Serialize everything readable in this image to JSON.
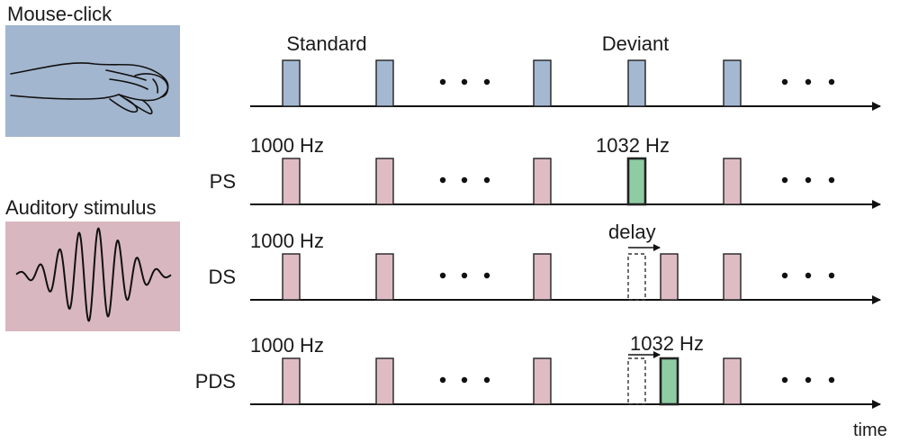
{
  "legend": {
    "mouse": {
      "caption": "Mouse-click",
      "panel_color": "#a3b6cf",
      "icon": "hand-on-mouse-icon"
    },
    "audio": {
      "caption": "Auditory stimulus",
      "panel_color": "#d9b7c0",
      "icon": "sound-waveform-icon"
    }
  },
  "colors": {
    "click_pulse": "#a4b8d2",
    "standard_pulse": "#dfbcc4",
    "deviant_pulse": "#8fcca4",
    "stroke": "#222222"
  },
  "rows": [
    {
      "id": "click",
      "label": "",
      "top_labels": [
        {
          "text": "Standard",
          "anchor": 1
        },
        {
          "text": "Deviant",
          "anchor": 3
        }
      ],
      "pulses": [
        {
          "kind": "click"
        },
        {
          "kind": "click"
        },
        {
          "kind": "click"
        },
        {
          "kind": "click"
        },
        {
          "kind": "click"
        }
      ]
    },
    {
      "id": "ps",
      "label": "PS",
      "top_labels": [
        {
          "text": "1000 Hz",
          "anchor": 0
        },
        {
          "text": "1032 Hz",
          "anchor": 3
        }
      ],
      "pulses": [
        {
          "kind": "standard"
        },
        {
          "kind": "standard"
        },
        {
          "kind": "standard"
        },
        {
          "kind": "deviant"
        },
        {
          "kind": "standard"
        }
      ]
    },
    {
      "id": "ds",
      "label": "DS",
      "top_labels": [
        {
          "text": "1000 Hz",
          "anchor": 0
        },
        {
          "text": "delay",
          "anchor": 3
        }
      ],
      "pulses": [
        {
          "kind": "standard"
        },
        {
          "kind": "standard"
        },
        {
          "kind": "standard"
        },
        {
          "kind": "standard",
          "delayed": true
        },
        {
          "kind": "standard"
        }
      ]
    },
    {
      "id": "pds",
      "label": "PDS",
      "top_labels": [
        {
          "text": "1000 Hz",
          "anchor": 0
        },
        {
          "text": "1032 Hz",
          "anchor": 3
        }
      ],
      "pulses": [
        {
          "kind": "standard"
        },
        {
          "kind": "standard"
        },
        {
          "kind": "standard"
        },
        {
          "kind": "deviant",
          "delayed": true
        },
        {
          "kind": "standard"
        }
      ]
    }
  ],
  "ellipsis": "• • •",
  "axis_label": "time"
}
